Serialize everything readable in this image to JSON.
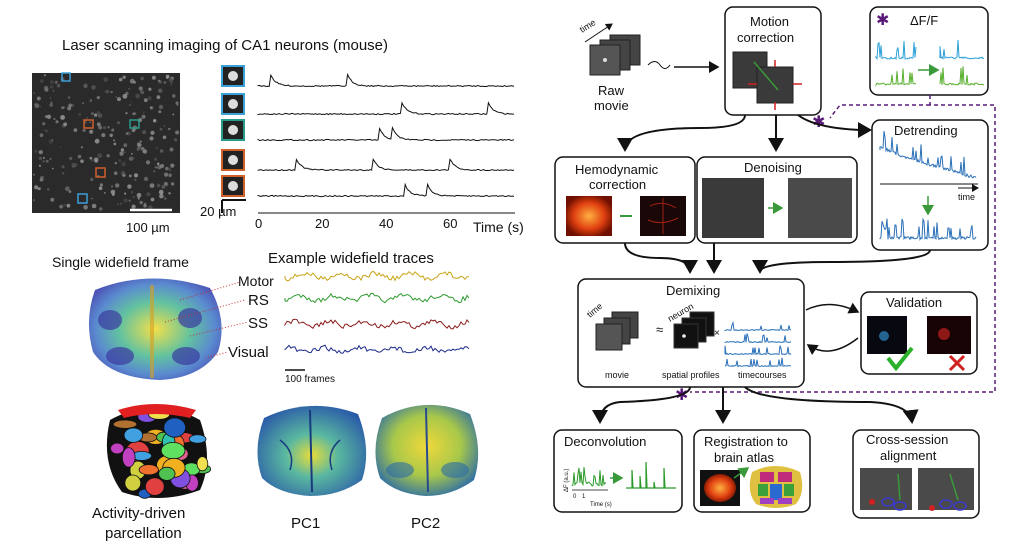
{
  "left": {
    "title": "Laser scanning imaging of CA1 neurons (mouse)",
    "scalebar_um": "100 µm",
    "trace_scale": "20 µm",
    "time_axis": {
      "label": "Time (s)",
      "ticks": [
        "0",
        "20",
        "40",
        "60"
      ]
    },
    "roi_colors": [
      "#3aa0d8",
      "#3aa0d8",
      "#2a9a8a",
      "#d0602a",
      "#d0602a"
    ],
    "widefield_frame_title": "Single widefield frame",
    "widefield_traces_title": "Example widefield traces",
    "regions": [
      "Motor",
      "RS",
      "SS",
      "Visual"
    ],
    "trace_colors": [
      "#c8a419",
      "#2f9a2f",
      "#8a1c1c",
      "#1a2a8a"
    ],
    "frames_scale": "100 frames",
    "parcellation_label": "Activity-driven parcellation",
    "pc_labels": [
      "PC1",
      "PC2"
    ]
  },
  "pipeline": {
    "raw_movie": {
      "label_line1": "Raw",
      "label_line2": "movie",
      "axis": "time"
    },
    "motion": {
      "line1": "Motion",
      "line2": "correction"
    },
    "dff": {
      "label": "ΔF/F"
    },
    "hemo": {
      "line1": "Hemodynamic",
      "line2": "correction"
    },
    "denoising": {
      "label": "Denoising"
    },
    "detrending": {
      "label": "Detrending",
      "axis": "time"
    },
    "demixing": {
      "label": "Demixing",
      "sub_time": "time",
      "sub_neuron": "neuron",
      "movie": "movie",
      "spatial": "spatial profiles",
      "timecourses": "timecourses",
      "approx": "≈",
      "times": "×"
    },
    "validation": {
      "label": "Validation"
    },
    "deconvolution": {
      "label": "Deconvolution",
      "ylabel": "ΔF (a.u.)",
      "xlabel": "Time (s)",
      "tick0": "0",
      "tick1": "1"
    },
    "registration": {
      "line1": "Registration to",
      "line2": "brain atlas"
    },
    "cross_session": {
      "line1": "Cross-session",
      "line2": "alignment"
    }
  }
}
